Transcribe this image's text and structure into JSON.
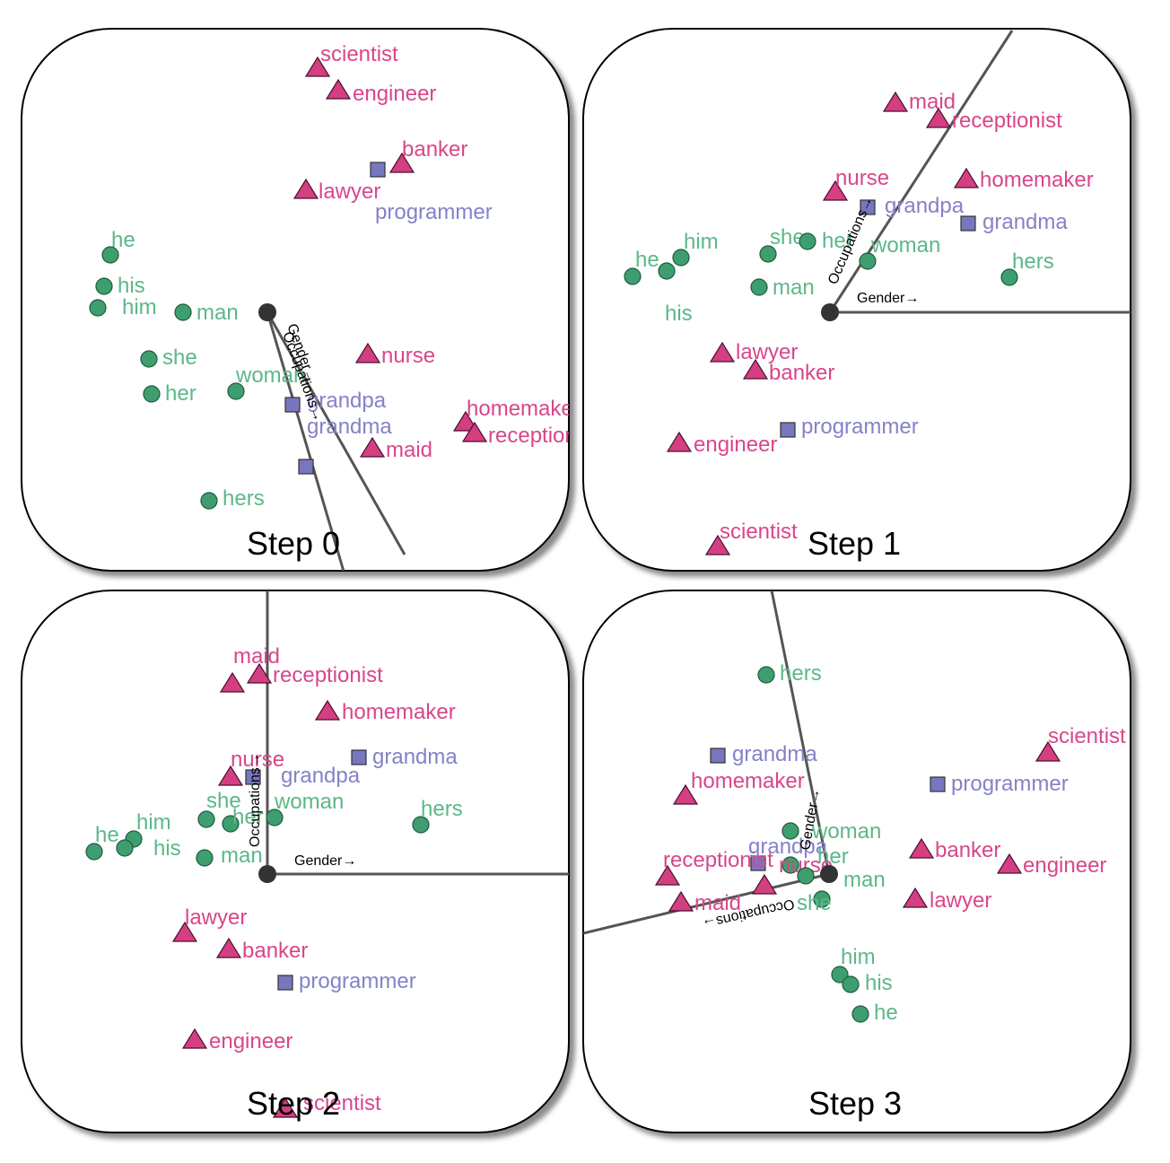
{
  "colors": {
    "pronoun": "#3e9e6f",
    "pronoun_text": "#5cb888",
    "occupation": "#d43f82",
    "occupation_text": "#d9468a",
    "family": "#7876bf",
    "family_text": "#8482c8",
    "axis": "#555555",
    "origin": "#333333"
  },
  "chart_data": [
    {
      "type": "scatter",
      "title": "Step 0",
      "axes": [
        {
          "label": "Gender",
          "arrow": "→"
        },
        {
          "label": "Occupations",
          "arrow": "→"
        }
      ],
      "points": [
        {
          "label": "scientist",
          "group": "occupation",
          "marker": "triangle"
        },
        {
          "label": "engineer",
          "group": "occupation",
          "marker": "triangle"
        },
        {
          "label": "banker",
          "group": "occupation",
          "marker": "triangle"
        },
        {
          "label": "lawyer",
          "group": "occupation",
          "marker": "triangle"
        },
        {
          "label": "programmer",
          "group": "occupation",
          "marker": "square"
        },
        {
          "label": "nurse",
          "group": "occupation",
          "marker": "triangle"
        },
        {
          "label": "homemaker",
          "group": "occupation",
          "marker": "triangle"
        },
        {
          "label": "receptionist",
          "group": "occupation",
          "marker": "triangle"
        },
        {
          "label": "maid",
          "group": "occupation",
          "marker": "triangle"
        },
        {
          "label": "grandpa",
          "group": "family",
          "marker": "square"
        },
        {
          "label": "grandma",
          "group": "family",
          "marker": "square"
        },
        {
          "label": "he",
          "group": "pronoun",
          "marker": "circle"
        },
        {
          "label": "his",
          "group": "pronoun",
          "marker": "circle"
        },
        {
          "label": "him",
          "group": "pronoun",
          "marker": "circle"
        },
        {
          "label": "man",
          "group": "pronoun",
          "marker": "circle"
        },
        {
          "label": "she",
          "group": "pronoun",
          "marker": "circle"
        },
        {
          "label": "her",
          "group": "pronoun",
          "marker": "circle"
        },
        {
          "label": "woman",
          "group": "pronoun",
          "marker": "circle"
        },
        {
          "label": "hers",
          "group": "pronoun",
          "marker": "circle"
        }
      ]
    },
    {
      "type": "scatter",
      "title": "Step 1",
      "axes": [
        {
          "label": "Gender",
          "arrow": "→"
        },
        {
          "label": "Occupations",
          "arrow": "→"
        }
      ],
      "points": [
        {
          "label": "maid",
          "group": "occupation",
          "marker": "triangle"
        },
        {
          "label": "receptionist",
          "group": "occupation",
          "marker": "triangle"
        },
        {
          "label": "nurse",
          "group": "occupation",
          "marker": "triangle"
        },
        {
          "label": "homemaker",
          "group": "occupation",
          "marker": "triangle"
        },
        {
          "label": "grandpa",
          "group": "family",
          "marker": "square"
        },
        {
          "label": "grandma",
          "group": "family",
          "marker": "square"
        },
        {
          "label": "he",
          "group": "pronoun",
          "marker": "circle"
        },
        {
          "label": "him",
          "group": "pronoun",
          "marker": "circle"
        },
        {
          "label": "his",
          "group": "pronoun",
          "marker": "circle"
        },
        {
          "label": "she",
          "group": "pronoun",
          "marker": "circle"
        },
        {
          "label": "her",
          "group": "pronoun",
          "marker": "circle"
        },
        {
          "label": "man",
          "group": "pronoun",
          "marker": "circle"
        },
        {
          "label": "woman",
          "group": "pronoun",
          "marker": "circle"
        },
        {
          "label": "hers",
          "group": "pronoun",
          "marker": "circle"
        },
        {
          "label": "lawyer",
          "group": "occupation",
          "marker": "triangle"
        },
        {
          "label": "banker",
          "group": "occupation",
          "marker": "triangle"
        },
        {
          "label": "programmer",
          "group": "occupation",
          "marker": "square"
        },
        {
          "label": "engineer",
          "group": "occupation",
          "marker": "triangle"
        },
        {
          "label": "scientist",
          "group": "occupation",
          "marker": "triangle"
        }
      ]
    },
    {
      "type": "scatter",
      "title": "Step 2",
      "axes": [
        {
          "label": "Gender",
          "arrow": "→"
        },
        {
          "label": "Occupations",
          "arrow": "→"
        }
      ],
      "points": [
        {
          "label": "maid",
          "group": "occupation",
          "marker": "triangle"
        },
        {
          "label": "receptionist",
          "group": "occupation",
          "marker": "triangle"
        },
        {
          "label": "homemaker",
          "group": "occupation",
          "marker": "triangle"
        },
        {
          "label": "nurse",
          "group": "occupation",
          "marker": "triangle"
        },
        {
          "label": "grandma",
          "group": "family",
          "marker": "square"
        },
        {
          "label": "grandpa",
          "group": "family",
          "marker": "square"
        },
        {
          "label": "she",
          "group": "pronoun",
          "marker": "circle"
        },
        {
          "label": "her",
          "group": "pronoun",
          "marker": "circle"
        },
        {
          "label": "woman",
          "group": "pronoun",
          "marker": "circle"
        },
        {
          "label": "hers",
          "group": "pronoun",
          "marker": "circle"
        },
        {
          "label": "he",
          "group": "pronoun",
          "marker": "circle"
        },
        {
          "label": "him",
          "group": "pronoun",
          "marker": "circle"
        },
        {
          "label": "his",
          "group": "pronoun",
          "marker": "circle"
        },
        {
          "label": "man",
          "group": "pronoun",
          "marker": "circle"
        },
        {
          "label": "lawyer",
          "group": "occupation",
          "marker": "triangle"
        },
        {
          "label": "banker",
          "group": "occupation",
          "marker": "triangle"
        },
        {
          "label": "programmer",
          "group": "occupation",
          "marker": "square"
        },
        {
          "label": "engineer",
          "group": "occupation",
          "marker": "triangle"
        },
        {
          "label": "scientist",
          "group": "occupation",
          "marker": "triangle"
        }
      ]
    },
    {
      "type": "scatter",
      "title": "Step 3",
      "axes": [
        {
          "label": "Gender",
          "arrow": "→"
        },
        {
          "label": "Occupations",
          "arrow": "→"
        }
      ],
      "points": [
        {
          "label": "hers",
          "group": "pronoun",
          "marker": "circle"
        },
        {
          "label": "grandma",
          "group": "family",
          "marker": "square"
        },
        {
          "label": "homemaker",
          "group": "occupation",
          "marker": "triangle"
        },
        {
          "label": "scientist",
          "group": "occupation",
          "marker": "triangle"
        },
        {
          "label": "programmer",
          "group": "occupation",
          "marker": "square"
        },
        {
          "label": "woman",
          "group": "pronoun",
          "marker": "circle"
        },
        {
          "label": "grandpa",
          "group": "family",
          "marker": "square"
        },
        {
          "label": "her",
          "group": "pronoun",
          "marker": "circle"
        },
        {
          "label": "receptionist",
          "group": "occupation",
          "marker": "triangle"
        },
        {
          "label": "nurse",
          "group": "occupation",
          "marker": "triangle"
        },
        {
          "label": "maid",
          "group": "occupation",
          "marker": "triangle"
        },
        {
          "label": "she",
          "group": "pronoun",
          "marker": "circle"
        },
        {
          "label": "man",
          "group": "pronoun",
          "marker": "circle"
        },
        {
          "label": "banker",
          "group": "occupation",
          "marker": "triangle"
        },
        {
          "label": "engineer",
          "group": "occupation",
          "marker": "triangle"
        },
        {
          "label": "lawyer",
          "group": "occupation",
          "marker": "triangle"
        },
        {
          "label": "him",
          "group": "pronoun",
          "marker": "circle"
        },
        {
          "label": "his",
          "group": "pronoun",
          "marker": "circle"
        },
        {
          "label": "he",
          "group": "pronoun",
          "marker": "circle"
        }
      ]
    }
  ]
}
